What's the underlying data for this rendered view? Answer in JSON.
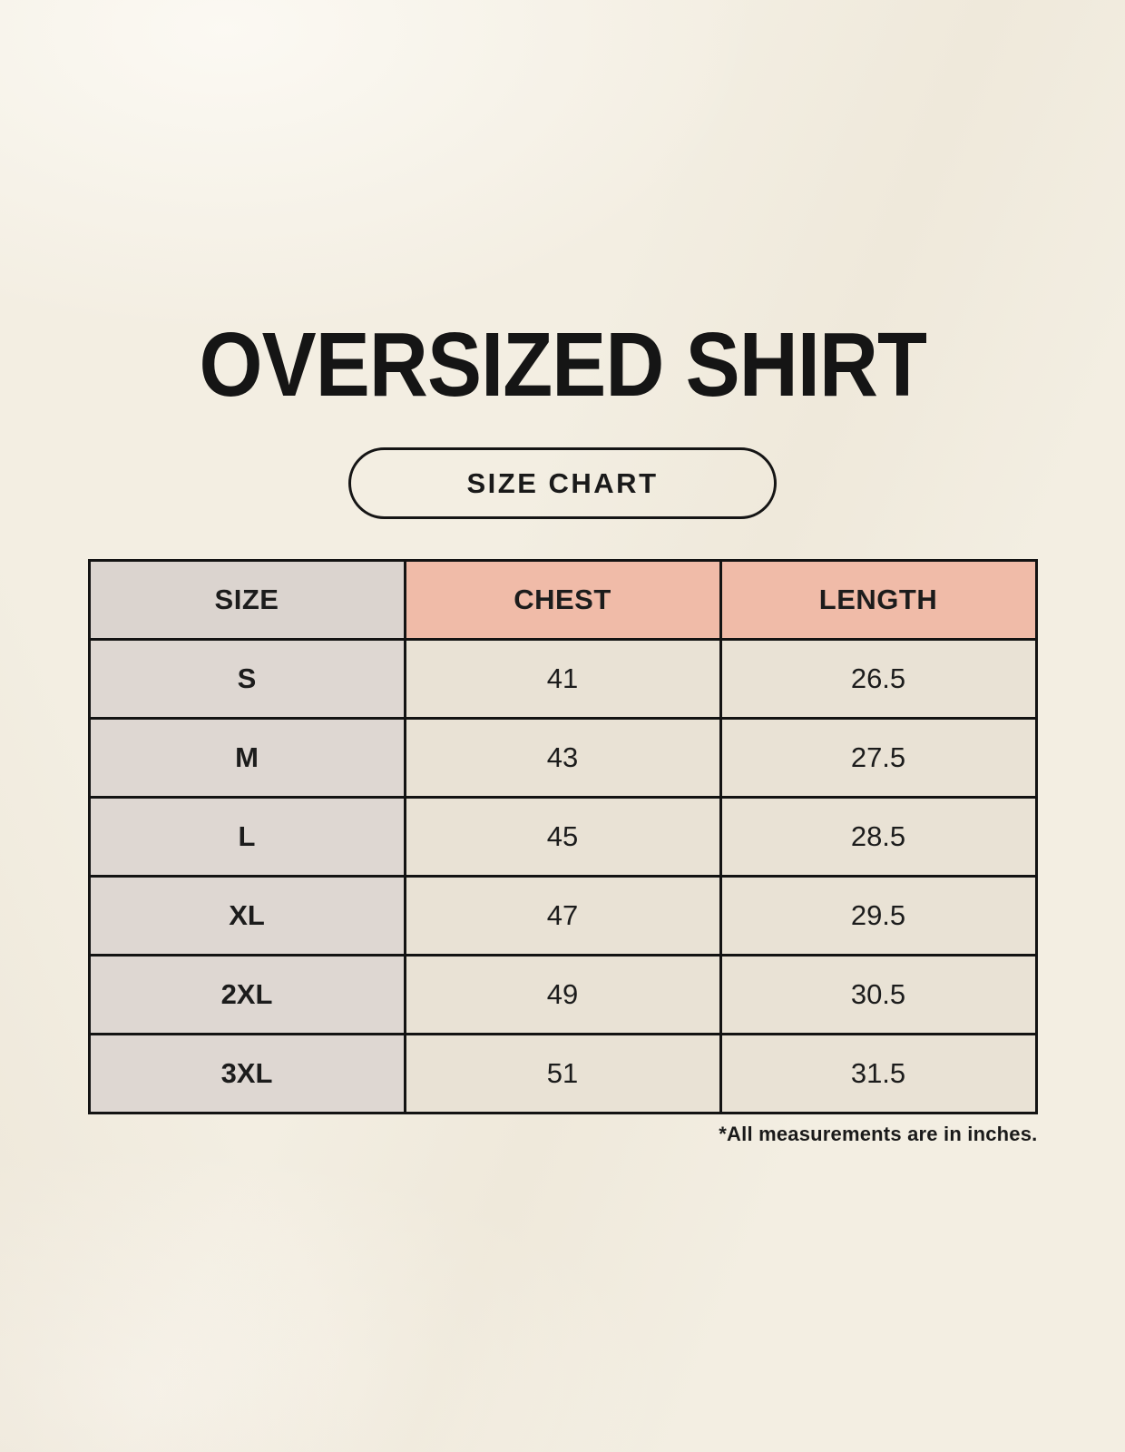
{
  "title": "OVERSIZED SHIRT",
  "badge_label": "SIZE CHART",
  "footnote": "*All measurements are in inches.",
  "table": {
    "headers": {
      "size": "SIZE",
      "chest": "CHEST",
      "length": "LENGTH"
    },
    "rows": [
      {
        "size": "S",
        "chest": "41",
        "length": "26.5"
      },
      {
        "size": "M",
        "chest": "43",
        "length": "27.5"
      },
      {
        "size": "L",
        "chest": "45",
        "length": "28.5"
      },
      {
        "size": "XL",
        "chest": "47",
        "length": "29.5"
      },
      {
        "size": "2XL",
        "chest": "49",
        "length": "30.5"
      },
      {
        "size": "3XL",
        "chest": "51",
        "length": "31.5"
      }
    ]
  },
  "colors": {
    "background": "#f3eee2",
    "header_size_bg": "#dbd4cf",
    "header_accent_bg": "#f0bba8",
    "row_label_bg": "#ded7d2",
    "value_cell_bg": "#e9e2d5",
    "border": "#131313",
    "text": "#1c1c1c"
  },
  "chart_data": {
    "type": "table",
    "title": "OVERSIZED SHIRT",
    "columns": [
      "SIZE",
      "CHEST",
      "LENGTH"
    ],
    "rows": [
      [
        "S",
        "41",
        "26.5"
      ],
      [
        "M",
        "43",
        "27.5"
      ],
      [
        "L",
        "45",
        "28.5"
      ],
      [
        "XL",
        "47",
        "29.5"
      ],
      [
        "2XL",
        "49",
        "30.5"
      ],
      [
        "3XL",
        "51",
        "31.5"
      ]
    ],
    "units": "inches",
    "note": "*All measurements are in inches."
  }
}
